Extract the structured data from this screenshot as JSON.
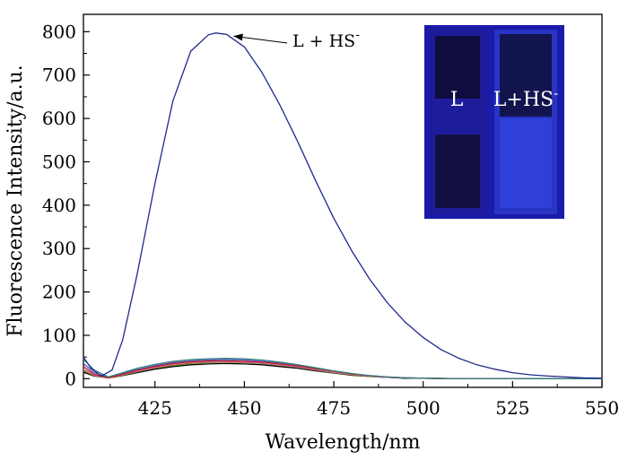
{
  "chart_data": {
    "type": "line",
    "xlabel": "Wavelength/nm",
    "ylabel": "Fluorescence Intensity/a.u.",
    "xlim": [
      405,
      550
    ],
    "ylim": [
      -20,
      840
    ],
    "x_ticks": [
      "425",
      "450",
      "475",
      "500",
      "525",
      "550"
    ],
    "y_ticks": [
      "0",
      "100",
      "200",
      "300",
      "400",
      "500",
      "600",
      "700",
      "800"
    ],
    "annotation": {
      "text": "L + HS",
      "sup": "-",
      "arrow_to": [
        447,
        790
      ]
    },
    "inset": {
      "label_left": "L",
      "label_right": "L+HS",
      "label_right_sup": "-"
    },
    "series": [
      {
        "color": "#1f2a8c",
        "x": [
          405,
          407,
          410,
          413,
          416,
          420,
          425,
          430,
          435,
          440,
          442,
          445,
          450,
          455,
          460,
          465,
          470,
          475,
          480,
          485,
          490,
          495,
          500,
          505,
          510,
          515,
          520,
          525,
          530,
          535,
          540,
          545,
          550
        ],
        "y": [
          50,
          25,
          6,
          20,
          90,
          240,
          450,
          640,
          755,
          793,
          797,
          794,
          765,
          705,
          630,
          545,
          455,
          370,
          295,
          230,
          175,
          130,
          95,
          67,
          47,
          32,
          22,
          14,
          9,
          6,
          4,
          2,
          1
        ]
      },
      {
        "color": "#2f7f7f",
        "x": [
          405,
          408,
          412,
          416,
          420,
          425,
          430,
          435,
          440,
          445,
          450,
          455,
          460,
          465,
          470,
          475,
          480,
          485,
          490,
          495,
          500,
          510,
          520,
          530,
          540,
          550
        ],
        "y": [
          45,
          20,
          4,
          14,
          24,
          33,
          40,
          44,
          46,
          47,
          46,
          43,
          38,
          32,
          25,
          18,
          12,
          7,
          4,
          2,
          1,
          0,
          0,
          0,
          0,
          0
        ]
      },
      {
        "color": "#c02020",
        "x": [
          405,
          408,
          412,
          416,
          420,
          425,
          430,
          435,
          440,
          445,
          450,
          455,
          460,
          465,
          470,
          475,
          480,
          485,
          490,
          495,
          500,
          510,
          520,
          530,
          540,
          550
        ],
        "y": [
          28,
          10,
          2,
          10,
          19,
          28,
          35,
          39,
          41,
          41,
          40,
          38,
          34,
          29,
          23,
          17,
          11,
          7,
          4,
          2,
          1,
          0,
          0,
          0,
          0,
          0
        ]
      },
      {
        "color": "#d070b0",
        "x": [
          405,
          408,
          412,
          416,
          420,
          425,
          430,
          435,
          440,
          445,
          450,
          455,
          460,
          465,
          470,
          475,
          480,
          485,
          490,
          495,
          500,
          510,
          520,
          530,
          540,
          550
        ],
        "y": [
          22,
          8,
          2,
          9,
          17,
          26,
          33,
          37,
          39,
          39,
          38,
          36,
          32,
          27,
          21,
          15,
          10,
          6,
          3,
          2,
          1,
          0,
          0,
          0,
          0,
          0
        ]
      },
      {
        "color": "#7a7a00",
        "x": [
          405,
          408,
          412,
          416,
          420,
          425,
          430,
          435,
          440,
          445,
          450,
          455,
          460,
          465,
          470,
          475,
          480,
          485,
          490,
          495,
          500,
          510,
          520,
          530,
          540,
          550
        ],
        "y": [
          18,
          7,
          2,
          8,
          16,
          25,
          31,
          35,
          37,
          38,
          37,
          35,
          31,
          26,
          20,
          14,
          9,
          5,
          3,
          2,
          1,
          0,
          0,
          0,
          0,
          0
        ]
      },
      {
        "color": "#000000",
        "x": [
          405,
          408,
          412,
          416,
          420,
          425,
          430,
          435,
          440,
          445,
          450,
          455,
          460,
          465,
          470,
          475,
          480,
          485,
          490,
          495,
          500,
          510,
          520,
          530,
          540,
          550
        ],
        "y": [
          15,
          6,
          2,
          7,
          14,
          22,
          28,
          32,
          34,
          35,
          34,
          32,
          28,
          24,
          18,
          13,
          8,
          5,
          3,
          1,
          1,
          0,
          0,
          0,
          0,
          0
        ]
      },
      {
        "color": "#5050c0",
        "x": [
          405,
          408,
          412,
          416,
          420,
          425,
          430,
          435,
          440,
          445,
          450,
          455,
          460,
          465,
          470,
          475,
          480,
          485,
          490,
          495,
          500,
          510,
          520,
          530,
          540,
          550
        ],
        "y": [
          35,
          14,
          3,
          12,
          21,
          30,
          37,
          41,
          43,
          44,
          43,
          40,
          36,
          31,
          24,
          17,
          11,
          7,
          4,
          2,
          1,
          0,
          0,
          0,
          0,
          0
        ]
      }
    ]
  }
}
